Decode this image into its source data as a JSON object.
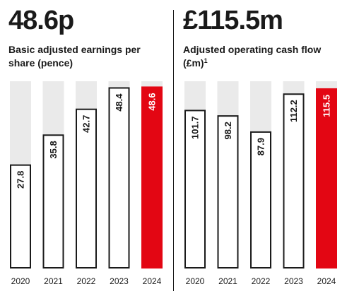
{
  "colors": {
    "track": "#eaeaea",
    "bar_fill": "#ffffff",
    "bar_stroke": "#1a1a1a",
    "highlight": "#e30613",
    "text": "#1a1a1a",
    "highlight_text": "#ffffff"
  },
  "panels": [
    {
      "headline": "48.6p",
      "subtitle": "Basic adjusted earnings per share (pence)",
      "subtitle_sup": ""
    },
    {
      "headline": "£115.5m",
      "subtitle": "Adjusted operating cash flow (£m)",
      "subtitle_sup": "1"
    }
  ],
  "chart_data": [
    {
      "type": "bar",
      "title": "Basic adjusted earnings per share (pence)",
      "categories": [
        "2020",
        "2021",
        "2022",
        "2023",
        "2024"
      ],
      "values": [
        27.8,
        35.8,
        42.7,
        48.4,
        48.6
      ],
      "labels": [
        "27.8",
        "35.8",
        "42.7",
        "48.4",
        "48.6"
      ],
      "highlight_index": 4,
      "ylim": [
        0,
        50
      ],
      "grid": false
    },
    {
      "type": "bar",
      "title": "Adjusted operating cash flow (£m)",
      "categories": [
        "2020",
        "2021",
        "2022",
        "2023",
        "2024"
      ],
      "values": [
        101.7,
        98.2,
        87.9,
        112.2,
        115.5
      ],
      "labels": [
        "101.7",
        "98.2",
        "87.9",
        "112.2",
        "115.5"
      ],
      "highlight_index": 4,
      "ylim": [
        0,
        120
      ],
      "grid": false
    }
  ]
}
